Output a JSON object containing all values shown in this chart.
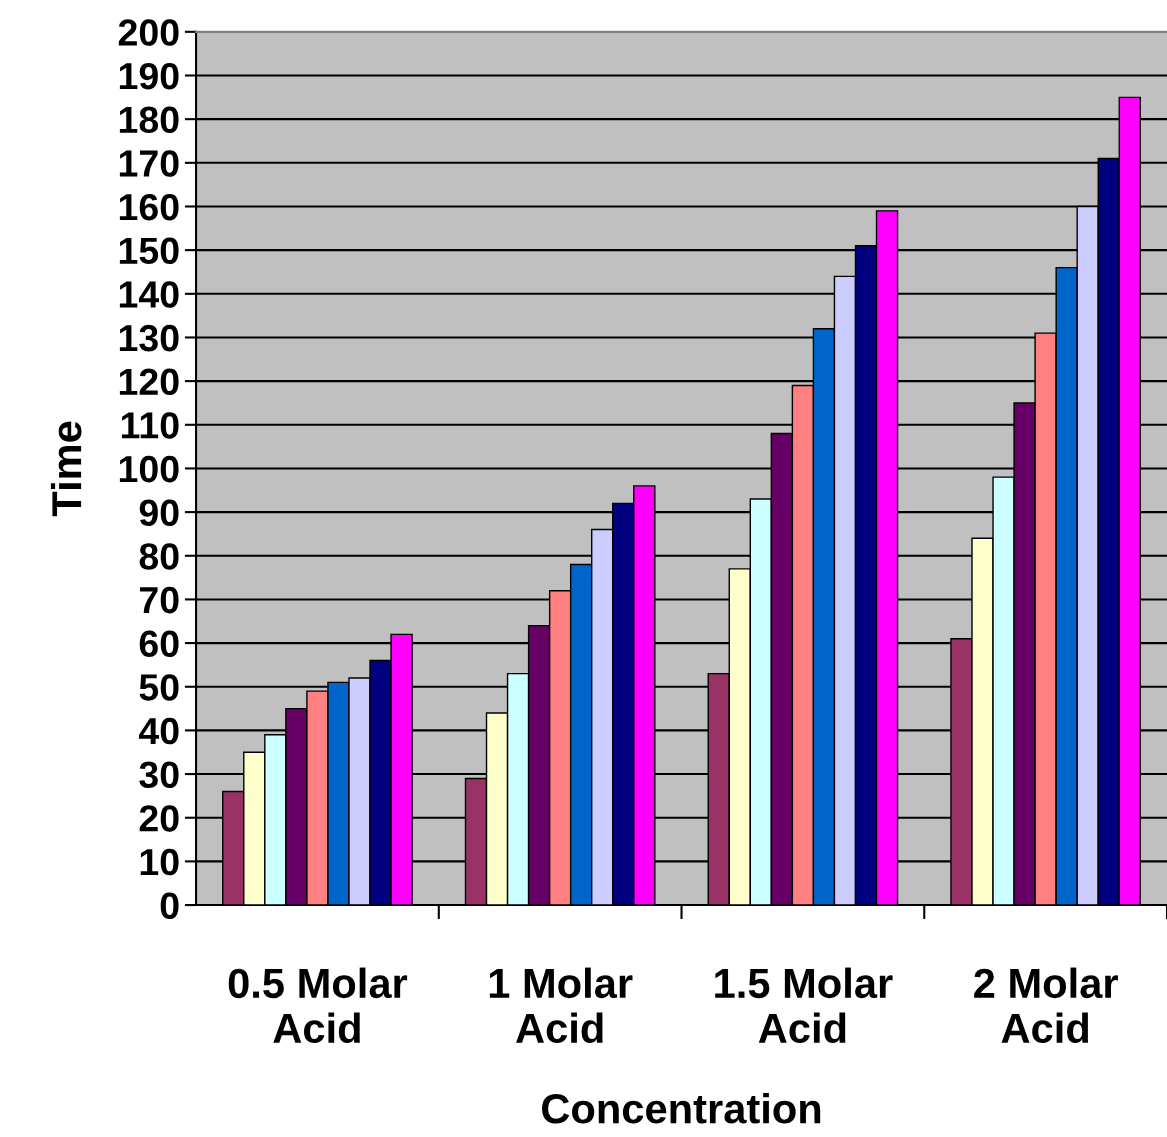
{
  "chart_data": {
    "type": "bar",
    "xlabel": "Concentration",
    "ylabel": "Time",
    "categories": [
      "0.5 Molar\nAcid",
      "1 Molar\nAcid",
      "1.5 Molar\nAcid",
      "2 Molar\nAcid"
    ],
    "series": [
      {
        "color": "#993366",
        "values": [
          26,
          29,
          53,
          61
        ]
      },
      {
        "color": "#ffffcc",
        "values": [
          35,
          44,
          77,
          84
        ]
      },
      {
        "color": "#ccffff",
        "values": [
          39,
          53,
          93,
          98
        ]
      },
      {
        "color": "#660066",
        "values": [
          45,
          64,
          108,
          115
        ]
      },
      {
        "color": "#ff8080",
        "values": [
          49,
          72,
          119,
          131
        ]
      },
      {
        "color": "#0066cc",
        "values": [
          51,
          78,
          132,
          146
        ]
      },
      {
        "color": "#ccccff",
        "values": [
          52,
          86,
          144,
          160
        ]
      },
      {
        "color": "#000080",
        "values": [
          56,
          92,
          151,
          171
        ]
      },
      {
        "color": "#ff00ff",
        "values": [
          62,
          96,
          159,
          185
        ]
      }
    ],
    "ylim": [
      0,
      200
    ],
    "yticks": [
      0,
      10,
      20,
      30,
      40,
      50,
      60,
      70,
      80,
      90,
      100,
      110,
      120,
      130,
      140,
      150,
      160,
      170,
      180,
      190,
      200
    ],
    "grid": "y",
    "legend": false
  }
}
